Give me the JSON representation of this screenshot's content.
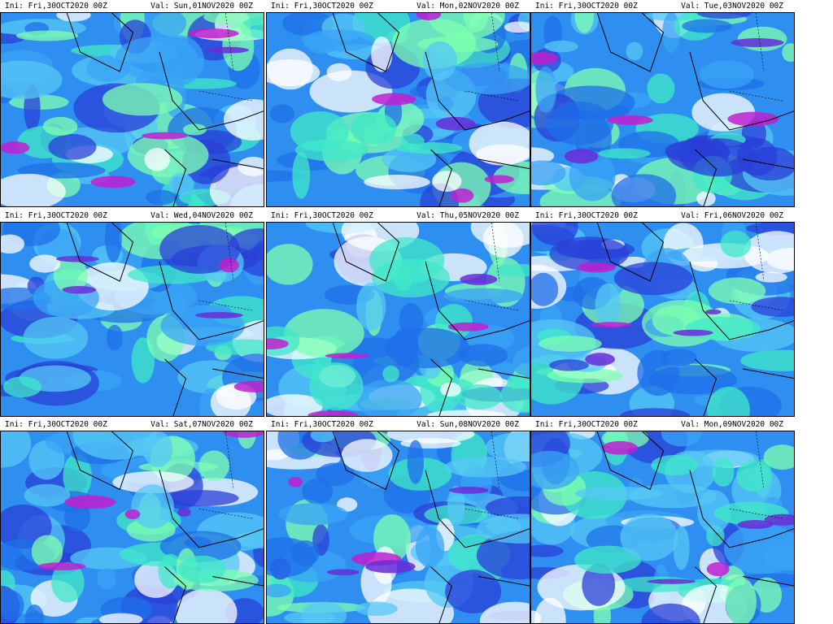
{
  "panels": [
    {
      "ini": "Ini: Fri,30OCT2020 00Z",
      "val": "Val: Sun,01NOV2020 00Z"
    },
    {
      "ini": "Ini: Fri,30OCT2020 00Z",
      "val": "Val: Mon,02NOV2020 00Z"
    },
    {
      "ini": "Ini: Fri,30OCT2020 00Z",
      "val": "Val: Tue,03NOV2020 00Z"
    },
    {
      "ini": "Ini: Fri,30OCT2020 00Z",
      "val": "Val: Wed,04NOV2020 00Z"
    },
    {
      "ini": "Ini: Fri,30OCT2020 00Z",
      "val": "Val: Thu,05NOV2020 00Z"
    },
    {
      "ini": "Ini: Fri,30OCT2020 00Z",
      "val": "Val: Fri,06NOV2020 00Z"
    },
    {
      "ini": "Ini: Fri,30OCT2020 00Z",
      "val": "Val: Sat,07NOV2020 00Z"
    },
    {
      "ini": "Ini: Fri,30OCT2020 00Z",
      "val": "Val: Sun,08NOV2020 00Z"
    },
    {
      "ini": "Ini: Fri,30OCT2020 00Z",
      "val": "Val: Mon,09NOV2020 00Z"
    }
  ]
}
